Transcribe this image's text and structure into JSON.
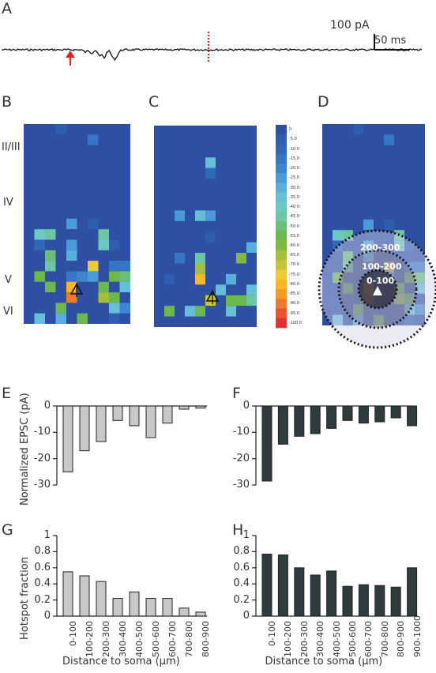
{
  "panels": {
    "A": "A",
    "B": "B",
    "C": "C",
    "D": "D",
    "E": "E",
    "F": "F",
    "G": "G",
    "H": "H"
  },
  "trace": {
    "scale_y": "100 pA",
    "scale_x": "50 ms"
  },
  "layers": [
    "II/III",
    "IV",
    "V",
    "VI"
  ],
  "colorbar": {
    "ticks": [
      "0",
      "-5.0",
      "-10.0",
      "-15.0",
      "-20.0",
      "-25.0",
      "-30.0",
      "-35.0",
      "-40.0",
      "-45.0",
      "-50.0",
      "-55.0",
      "-60.0",
      "-65.0",
      "-70.0",
      "-75.0",
      "-80.0",
      "-85.0",
      "-90.0",
      "-95.0",
      "-100.0"
    ],
    "colors": [
      "#2e4fa2",
      "#2f5db0",
      "#3268bb",
      "#3576c6",
      "#3d86cf",
      "#4a9bd8",
      "#58aedc",
      "#66bfd6",
      "#6cc8c0",
      "#6cc6a1",
      "#6bbd78",
      "#6cb84e",
      "#7fba3f",
      "#a2c03a",
      "#c6c538",
      "#eccb2f",
      "#f9b721",
      "#f59b25",
      "#f07a2b",
      "#ea5530",
      "#e23232"
    ]
  },
  "rings": [
    "200-300",
    "100-200",
    "0-100"
  ],
  "chart_data": [
    {
      "type": "bar",
      "panel": "E",
      "ylabel": "Normalized EPSC (pA)",
      "xlabel": "",
      "ylim": [
        -30,
        0
      ],
      "yticks": [
        "0",
        "-10",
        "-20",
        "-30"
      ],
      "categories": [
        "0-100",
        "100-200",
        "200-300",
        "300-400",
        "400-500",
        "500-600",
        "600-700",
        "700-800",
        "800-900"
      ],
      "values": [
        -25,
        -17,
        -13.5,
        -5.5,
        -7.5,
        -12,
        -6.5,
        -1.2,
        -0.8
      ],
      "color": "#c8c8c8"
    },
    {
      "type": "bar",
      "panel": "F",
      "ylabel": "",
      "xlabel": "",
      "ylim": [
        -30,
        0
      ],
      "yticks": [
        "0",
        "-10",
        "-20",
        "-30"
      ],
      "categories": [
        "0-100",
        "100-200",
        "200-300",
        "300-400",
        "400-500",
        "500-600",
        "600-700",
        "700-800",
        "800-900",
        "900-1000"
      ],
      "values": [
        -28.5,
        -14.5,
        -11.5,
        -10.5,
        -8.5,
        -5.5,
        -6.5,
        -6,
        -4.5,
        -7.5
      ],
      "color": "#2f3b3d"
    },
    {
      "type": "bar",
      "panel": "G",
      "ylabel": "Hotspot fraction",
      "xlabel": "Distance to soma (μm)",
      "ylim": [
        0,
        1
      ],
      "yticks": [
        "0",
        "0.2",
        "0.4",
        "0.6",
        "0.8",
        "1"
      ],
      "categories": [
        "0-100",
        "100-200",
        "200-300",
        "300-400",
        "400-500",
        "500-600",
        "600-700",
        "700-800",
        "800-900"
      ],
      "values": [
        0.55,
        0.5,
        0.43,
        0.22,
        0.3,
        0.22,
        0.22,
        0.1,
        0.05
      ],
      "color": "#c8c8c8"
    },
    {
      "type": "bar",
      "panel": "H",
      "ylabel": "",
      "xlabel": "Distance to soma (μm)",
      "ylim": [
        0,
        1
      ],
      "yticks": [
        "0",
        "0.2",
        "0.4",
        "0.6",
        "0.8",
        "1"
      ],
      "categories": [
        "0-100",
        "100-200",
        "200-300",
        "300-400",
        "400-500",
        "500-600",
        "600-700",
        "700-800",
        "800-900",
        "900-1000"
      ],
      "values": [
        0.77,
        0.76,
        0.6,
        0.51,
        0.56,
        0.37,
        0.39,
        0.38,
        0.36,
        0.6
      ],
      "color": "#2f3b3d"
    }
  ]
}
